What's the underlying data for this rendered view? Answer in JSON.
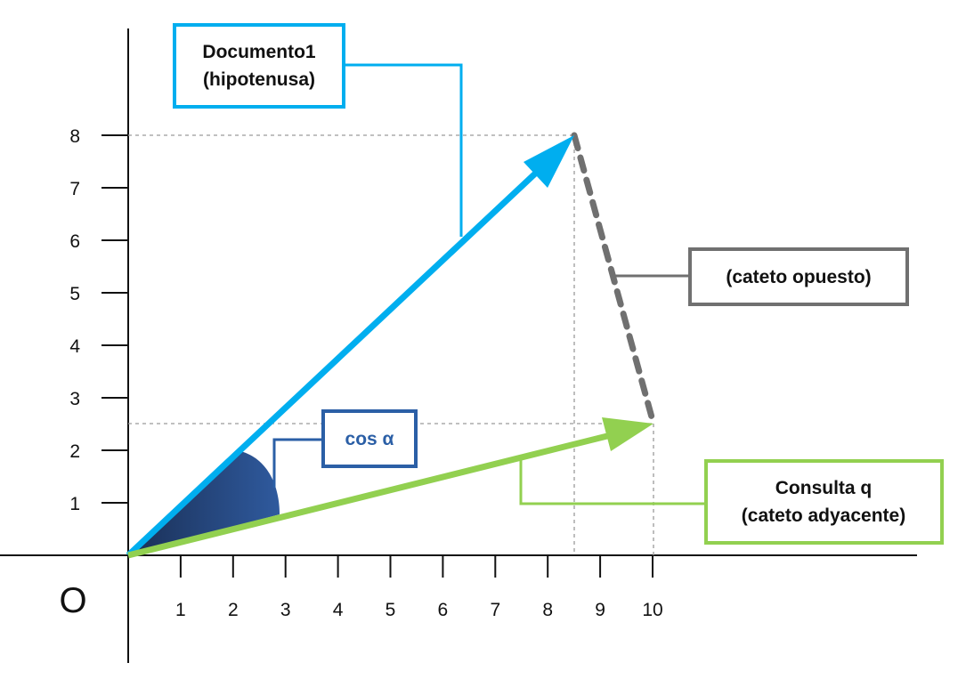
{
  "origin_label": "O",
  "axes": {
    "x_ticks": [
      "1",
      "2",
      "3",
      "4",
      "5",
      "6",
      "7",
      "8",
      "9",
      "10"
    ],
    "y_ticks": [
      "1",
      "2",
      "3",
      "4",
      "5",
      "6",
      "7",
      "8"
    ]
  },
  "vectors": {
    "document": {
      "tip": [
        8.5,
        8
      ],
      "color": "#00aeef"
    },
    "query": {
      "tip": [
        10,
        2.5
      ],
      "color": "#92d050"
    },
    "opposite": {
      "color": "#707070"
    }
  },
  "angle": {
    "color": "#2b4f8c"
  },
  "callouts": {
    "document": {
      "line1": "Documento1",
      "line2": "(hipotenusa)",
      "color": "#00aeef"
    },
    "query": {
      "line1": "Consulta q",
      "line2": "(cateto adyacente)",
      "color": "#92d050"
    },
    "opposite": {
      "label": "(cateto opuesto)",
      "color": "#707070"
    },
    "angle": {
      "label": "cos α",
      "color": "#2b5fa6"
    }
  }
}
